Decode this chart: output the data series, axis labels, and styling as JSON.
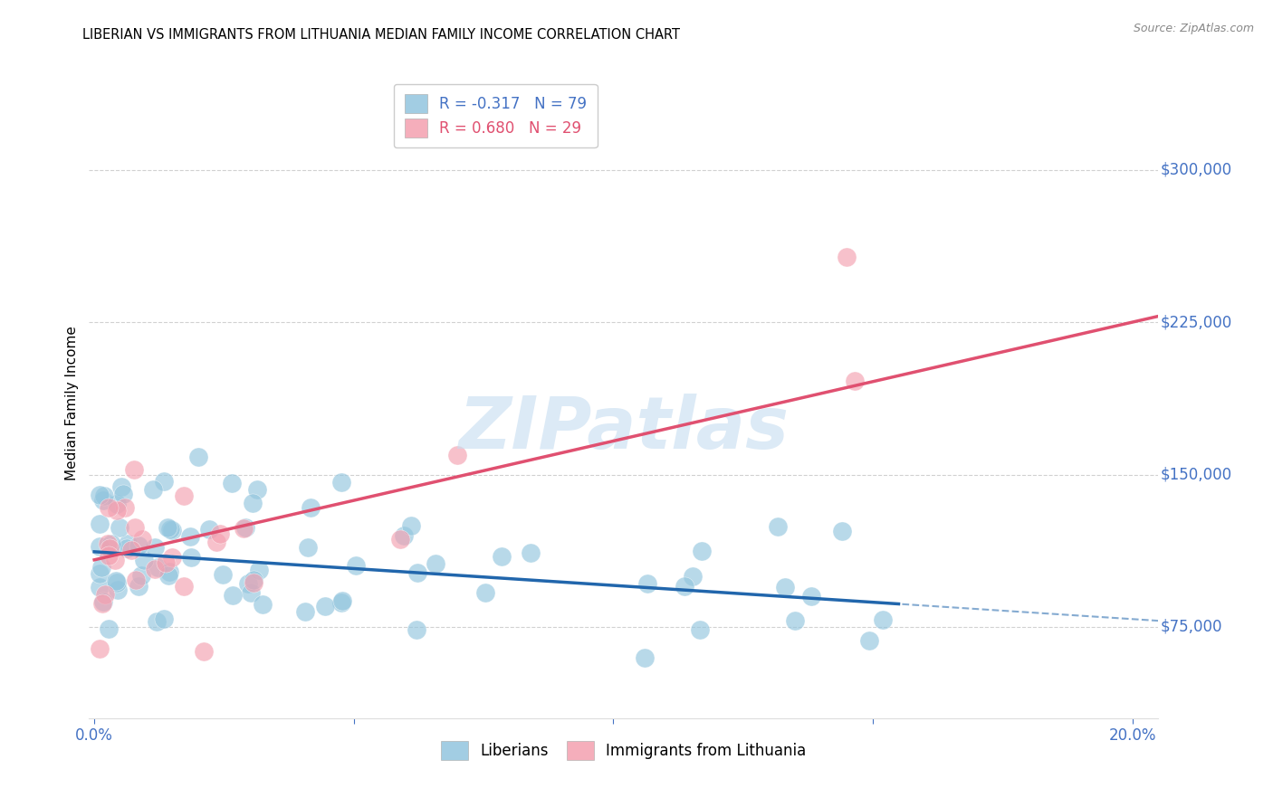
{
  "title": "LIBERIAN VS IMMIGRANTS FROM LITHUANIA MEDIAN FAMILY INCOME CORRELATION CHART",
  "source": "Source: ZipAtlas.com",
  "ylabel": "Median Family Income",
  "xlim": [
    -0.001,
    0.205
  ],
  "ylim": [
    30000,
    340000
  ],
  "ytick_vals": [
    75000,
    150000,
    225000,
    300000
  ],
  "ytick_labels": [
    "$75,000",
    "$150,000",
    "$225,000",
    "$300,000"
  ],
  "xtick_vals": [
    0.0,
    0.05,
    0.1,
    0.15,
    0.2
  ],
  "xtick_show": [
    "0.0%",
    "",
    "",
    "",
    "20.0%"
  ],
  "watermark": "ZIPatlas",
  "blue_color": "#92C5DE",
  "pink_color": "#F4A0B0",
  "trend_blue_color": "#2166AC",
  "trend_pink_color": "#E05070",
  "grid_color": "#CCCCCC",
  "axis_label_color": "#4472C4",
  "legend1_entries": [
    "R = -0.317   N = 79",
    "R = 0.680   N = 29"
  ],
  "legend2_entries": [
    "Liberians",
    "Immigrants from Lithuania"
  ],
  "blue_trend_y0": 112000,
  "blue_trend_y1": 78000,
  "blue_trend_x_solid_end": 0.155,
  "pink_trend_y0": 108000,
  "pink_trend_y1": 228000,
  "trend_x_end": 0.205
}
